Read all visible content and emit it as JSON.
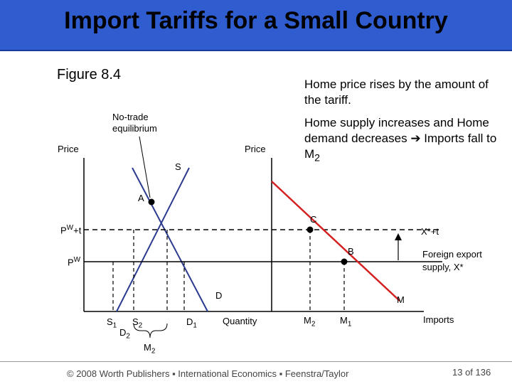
{
  "title": "Import Tariffs for a Small Country",
  "figure_label": "Figure 8.4",
  "notes": {
    "line1": "Home price rises by the amount of the tariff.",
    "line2_a": "Home supply increases and Home demand decreases ",
    "arrow": "➔",
    "line2_b": " Imports fall to M",
    "line2_sub": "2"
  },
  "left_panel": {
    "no_trade_label": "No-trade\nequilibrium",
    "price_axis": "Price",
    "quantity_axis": "Quantity",
    "supply_label": "S",
    "demand_label": "D",
    "point_a": "A",
    "pw_t": {
      "base": "P",
      "sup": "W",
      "suffix": "+t"
    },
    "pw": {
      "base": "P",
      "sup": "W"
    },
    "s1": {
      "base": "S",
      "sub": "1"
    },
    "s2": {
      "base": "S",
      "sub": "2"
    },
    "d2": {
      "base": "D",
      "sub": "2"
    },
    "d1": {
      "base": "D",
      "sub": "1"
    },
    "m2": {
      "base": "M",
      "sub": "2"
    }
  },
  "right_panel": {
    "price_axis": "Price",
    "imports_axis": "Imports",
    "point_c": "C",
    "point_b": "B",
    "xt_label": "X*+t",
    "foreign_supply": "Foreign export\nsupply, X*",
    "m_label": "M",
    "m2": {
      "base": "M",
      "sub": "2"
    },
    "m1": {
      "base": "M",
      "sub": "1"
    }
  },
  "footer": "© 2008 Worth Publishers ▪ International Economics ▪ Feenstra/Taylor",
  "page": "13 of 136",
  "colors": {
    "title_bar": "#2f5ccf",
    "import_demand": "#d42020"
  }
}
